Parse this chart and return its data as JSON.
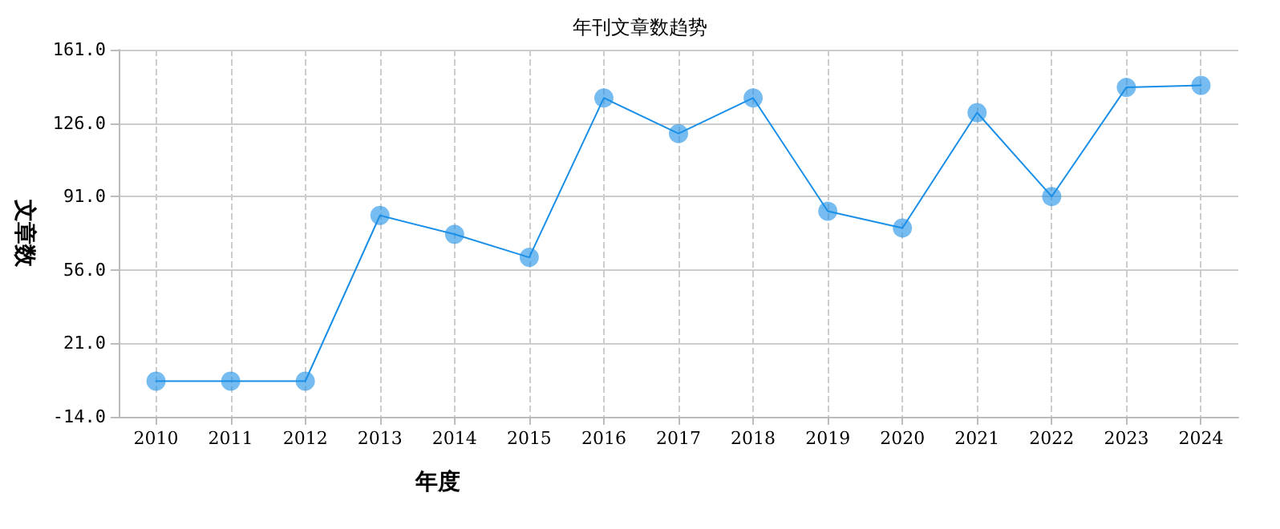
{
  "chart_data": {
    "type": "line",
    "title": "年刊文章数趋势",
    "xlabel": "年度",
    "ylabel": "文章数",
    "categories": [
      "2010",
      "2011",
      "2012",
      "2013",
      "2014",
      "2015",
      "2016",
      "2017",
      "2018",
      "2019",
      "2020",
      "2021",
      "2022",
      "2023",
      "2024"
    ],
    "series": [
      {
        "color": "#1a8fe8",
        "values": [
          3,
          3,
          3,
          82,
          73,
          62,
          138,
          121,
          138,
          84,
          76,
          131,
          91,
          143,
          144
        ]
      }
    ],
    "ylim": [
      -14,
      161
    ],
    "yticks": [
      {
        "value": -14,
        "label": "-14.0"
      },
      {
        "value": 21,
        "label": "21.0"
      },
      {
        "value": 56,
        "label": "56.0"
      },
      {
        "value": 91,
        "label": "91.0"
      },
      {
        "value": 126,
        "label": "126.0"
      },
      {
        "value": 161,
        "label": "161.0"
      }
    ],
    "grid": true,
    "marker": "circle",
    "line_style": "solid"
  }
}
